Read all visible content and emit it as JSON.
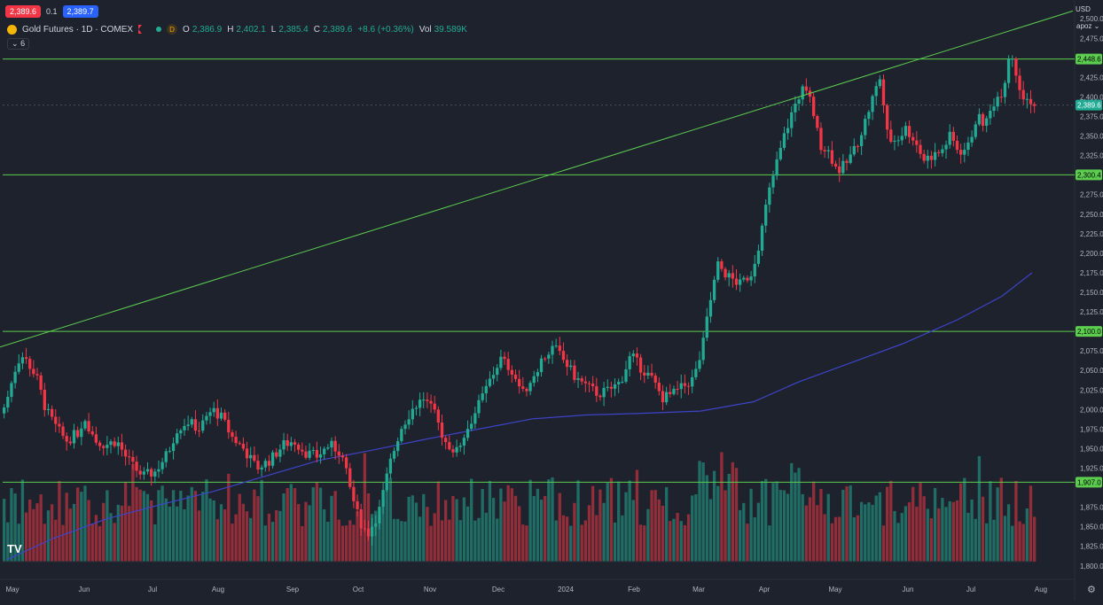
{
  "toolbar": {
    "sell_price": "2,389.6",
    "spread": "0.1",
    "buy_price": "2,389.7"
  },
  "legend": {
    "symbol": "Gold Futures · 1D · COMEX",
    "badge": "D",
    "ohlc": [
      {
        "k": "O",
        "v": "2,386.9"
      },
      {
        "k": "H",
        "v": "2,402.1"
      },
      {
        "k": "L",
        "v": "2,385.4"
      },
      {
        "k": "C",
        "v": "2,389.6"
      },
      {
        "k": "",
        "v": "+8.6 (+0.36%)"
      },
      {
        "k": "Vol",
        "v": "39.589K"
      }
    ],
    "collapse_label": "6"
  },
  "currency": "USD",
  "scale_mode": "apoz",
  "gear_icon": "gear-icon",
  "logo_text": "TV",
  "chart_data": {
    "type": "candlestick",
    "ylim": [
      1785,
      2515
    ],
    "yticks": [
      "2,500.0",
      "2,475.0",
      "2,425.0",
      "2,400.0",
      "2,375.0",
      "2,350.0",
      "2,325.0",
      "2,275.0",
      "2,250.0",
      "2,225.0",
      "2,200.0",
      "2,175.0",
      "2,150.0",
      "2,125.0",
      "2,075.0",
      "2,050.0",
      "2,025.0",
      "2,000.0",
      "1,975.0",
      "1,950.0",
      "1,925.0",
      "1,875.0",
      "1,850.0",
      "1,825.0",
      "1,800.0"
    ],
    "ytick_values": [
      2500,
      2475,
      2425,
      2400,
      2375,
      2350,
      2325,
      2275,
      2250,
      2225,
      2200,
      2175,
      2150,
      2125,
      2075,
      2050,
      2025,
      2000,
      1975,
      1950,
      1925,
      1875,
      1850,
      1825,
      1800
    ],
    "xticks": [
      "May",
      "Jun",
      "Jul",
      "Aug",
      "Sep",
      "Oct",
      "Nov",
      "Dec",
      "2024",
      "Feb",
      "Mar",
      "Apr",
      "May",
      "Jun",
      "Jul",
      "Aug"
    ],
    "horizontal_levels": [
      {
        "value": 2448.6,
        "label": "2,448.6"
      },
      {
        "value": 2300.4,
        "label": "2,300.4"
      },
      {
        "value": 2100.0,
        "label": "2,100.0"
      },
      {
        "value": 1907.0,
        "label": "1,907.0"
      }
    ],
    "last_price": {
      "value": 2389.6,
      "label": "2,389.6"
    },
    "trendline": [
      {
        "x": 0,
        "y": 2080
      },
      {
        "x": 1210,
        "y": 2510
      }
    ],
    "close_path": [
      [
        0,
        1990
      ],
      [
        8,
        2010
      ],
      [
        15,
        2045
      ],
      [
        24,
        2070
      ],
      [
        32,
        2060
      ],
      [
        42,
        2040
      ],
      [
        52,
        2000
      ],
      [
        62,
        1980
      ],
      [
        75,
        1960
      ],
      [
        88,
        1970
      ],
      [
        96,
        1990
      ],
      [
        108,
        1960
      ],
      [
        120,
        1955
      ],
      [
        132,
        1960
      ],
      [
        142,
        1940
      ],
      [
        152,
        1925
      ],
      [
        162,
        1915
      ],
      [
        175,
        1920
      ],
      [
        190,
        1945
      ],
      [
        200,
        1975
      ],
      [
        212,
        1985
      ],
      [
        225,
        1975
      ],
      [
        240,
        2000
      ],
      [
        250,
        1990
      ],
      [
        262,
        1965
      ],
      [
        275,
        1950
      ],
      [
        290,
        1925
      ],
      [
        305,
        1935
      ],
      [
        320,
        1955
      ],
      [
        332,
        1960
      ],
      [
        345,
        1945
      ],
      [
        358,
        1940
      ],
      [
        372,
        1955
      ],
      [
        385,
        1945
      ],
      [
        395,
        1900
      ],
      [
        405,
        1860
      ],
      [
        415,
        1840
      ],
      [
        428,
        1870
      ],
      [
        440,
        1930
      ],
      [
        452,
        1975
      ],
      [
        465,
        2000
      ],
      [
        478,
        2015
      ],
      [
        490,
        1995
      ],
      [
        502,
        1960
      ],
      [
        515,
        1945
      ],
      [
        527,
        1975
      ],
      [
        540,
        2005
      ],
      [
        552,
        2035
      ],
      [
        565,
        2065
      ],
      [
        578,
        2050
      ],
      [
        590,
        2020
      ],
      [
        600,
        2040
      ],
      [
        612,
        2065
      ],
      [
        625,
        2080
      ],
      [
        638,
        2060
      ],
      [
        650,
        2040
      ],
      [
        662,
        2030
      ],
      [
        675,
        2020
      ],
      [
        688,
        2025
      ],
      [
        700,
        2035
      ],
      [
        712,
        2070
      ],
      [
        722,
        2055
      ],
      [
        735,
        2040
      ],
      [
        748,
        2015
      ],
      [
        760,
        2020
      ],
      [
        772,
        2030
      ],
      [
        783,
        2040
      ],
      [
        792,
        2075
      ],
      [
        800,
        2130
      ],
      [
        810,
        2185
      ],
      [
        822,
        2170
      ],
      [
        835,
        2160
      ],
      [
        848,
        2175
      ],
      [
        858,
        2220
      ],
      [
        866,
        2270
      ],
      [
        875,
        2310
      ],
      [
        885,
        2350
      ],
      [
        895,
        2385
      ],
      [
        905,
        2410
      ],
      [
        915,
        2395
      ],
      [
        925,
        2340
      ],
      [
        935,
        2330
      ],
      [
        945,
        2305
      ],
      [
        955,
        2315
      ],
      [
        965,
        2335
      ],
      [
        975,
        2365
      ],
      [
        985,
        2400
      ],
      [
        993,
        2425
      ],
      [
        1002,
        2345
      ],
      [
        1012,
        2345
      ],
      [
        1022,
        2360
      ],
      [
        1032,
        2345
      ],
      [
        1042,
        2320
      ],
      [
        1052,
        2325
      ],
      [
        1062,
        2330
      ],
      [
        1072,
        2350
      ],
      [
        1082,
        2330
      ],
      [
        1092,
        2335
      ],
      [
        1102,
        2375
      ],
      [
        1112,
        2365
      ],
      [
        1122,
        2395
      ],
      [
        1132,
        2410
      ],
      [
        1140,
        2465
      ],
      [
        1148,
        2420
      ],
      [
        1156,
        2395
      ],
      [
        1164,
        2390
      ]
    ],
    "ma_line": [
      [
        8,
        1808
      ],
      [
        60,
        1835
      ],
      [
        120,
        1860
      ],
      [
        180,
        1878
      ],
      [
        240,
        1895
      ],
      [
        300,
        1915
      ],
      [
        360,
        1935
      ],
      [
        420,
        1948
      ],
      [
        480,
        1962
      ],
      [
        540,
        1975
      ],
      [
        600,
        1988
      ],
      [
        660,
        1993
      ],
      [
        720,
        1995
      ],
      [
        790,
        1998
      ],
      [
        850,
        2010
      ],
      [
        900,
        2035
      ],
      [
        960,
        2060
      ],
      [
        1020,
        2085
      ],
      [
        1080,
        2115
      ],
      [
        1130,
        2145
      ],
      [
        1164,
        2175
      ]
    ]
  }
}
